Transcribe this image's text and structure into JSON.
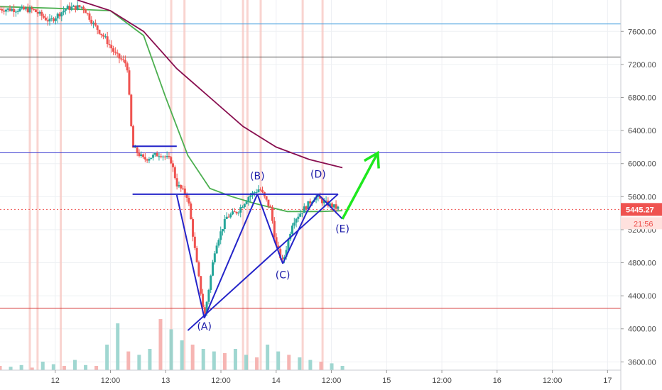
{
  "chart_data": {
    "type": "candlestick",
    "title": "",
    "y_axis": {
      "position": "right",
      "ticks": [
        "7600.00",
        "7200.00",
        "6800.00",
        "6400.00",
        "6000.00",
        "5600.00",
        "5200.00",
        "4800.00",
        "4400.00",
        "4000.00",
        "3600.00"
      ],
      "ylim": [
        3500,
        7980
      ]
    },
    "x_axis": {
      "ticks": [
        "12",
        "12:00",
        "13",
        "12:00",
        "14",
        "12:00",
        "15",
        "12:00",
        "16",
        "12:00",
        "17"
      ],
      "xlim": [
        0,
        5.62
      ]
    },
    "last_price": {
      "value": "5445.27",
      "countdown": "21:56",
      "color": "#ef5350"
    },
    "moving_averages": [
      {
        "color": "#4caf50",
        "points": [
          [
            0.0,
            7900
          ],
          [
            0.5,
            7880
          ],
          [
            1.0,
            7850
          ],
          [
            1.3,
            7550
          ],
          [
            1.5,
            6800
          ],
          [
            1.7,
            6100
          ],
          [
            1.9,
            5700
          ],
          [
            2.1,
            5600
          ],
          [
            2.3,
            5520
          ],
          [
            2.6,
            5420
          ],
          [
            2.9,
            5420
          ],
          [
            3.1,
            5430
          ]
        ]
      },
      {
        "color": "#880e4f",
        "points": [
          [
            0.7,
            7980
          ],
          [
            1.0,
            7850
          ],
          [
            1.3,
            7600
          ],
          [
            1.6,
            7150
          ],
          [
            1.9,
            6800
          ],
          [
            2.2,
            6450
          ],
          [
            2.5,
            6200
          ],
          [
            2.8,
            6050
          ],
          [
            3.1,
            5950
          ]
        ]
      }
    ],
    "price_path": [
      [
        0.0,
        7870
      ],
      [
        0.3,
        7860
      ],
      [
        0.45,
        7720
      ],
      [
        0.6,
        7880
      ],
      [
        0.75,
        7900
      ],
      [
        0.85,
        7680
      ],
      [
        0.95,
        7520
      ],
      [
        1.05,
        7310
      ],
      [
        1.15,
        7200
      ],
      [
        1.2,
        6200
      ],
      [
        1.3,
        6050
      ],
      [
        1.45,
        6120
      ],
      [
        1.55,
        6030
      ],
      [
        1.6,
        5750
      ],
      [
        1.7,
        5600
      ],
      [
        1.78,
        4800
      ],
      [
        1.85,
        4140
      ],
      [
        1.95,
        5000
      ],
      [
        2.05,
        5350
      ],
      [
        2.15,
        5420
      ],
      [
        2.25,
        5600
      ],
      [
        2.35,
        5700
      ],
      [
        2.45,
        5450
      ],
      [
        2.5,
        5000
      ],
      [
        2.56,
        4800
      ],
      [
        2.65,
        5300
      ],
      [
        2.75,
        5450
      ],
      [
        2.85,
        5600
      ],
      [
        2.95,
        5520
      ],
      [
        3.05,
        5460
      ]
    ],
    "volume": [
      0.05,
      0.04,
      0.06,
      0.03,
      0.1,
      0.07,
      0.05,
      0.12,
      0.06,
      0.05,
      0.3,
      0.55,
      0.22,
      0.18,
      0.25,
      0.6,
      0.48,
      0.35,
      0.3,
      0.25,
      0.22,
      0.2,
      0.25,
      0.18,
      0.15,
      0.3,
      0.22,
      0.18,
      0.15,
      0.12,
      0.1,
      0.08,
      0.05
    ],
    "horizontal_lines": [
      {
        "price": 7690,
        "color": "#4fa3e0"
      },
      {
        "price": 7290,
        "color": "#555555"
      },
      {
        "price": 6130,
        "color": "#3d3dd1"
      },
      {
        "price": 4250,
        "color": "#d32f2f"
      }
    ],
    "pattern_lines": [
      {
        "points": [
          [
            1.2,
            6210
          ],
          [
            1.6,
            6210
          ]
        ],
        "color": "#2424c9"
      },
      {
        "points": [
          [
            1.2,
            5630
          ],
          [
            3.06,
            5630
          ]
        ],
        "color": "#2424c9"
      },
      {
        "points": [
          [
            1.85,
            4130
          ],
          [
            1.6,
            5620
          ]
        ],
        "color": "#2424c9"
      },
      {
        "points": [
          [
            1.85,
            4130
          ],
          [
            2.33,
            5630
          ]
        ],
        "color": "#2424c9"
      },
      {
        "points": [
          [
            2.33,
            5630
          ],
          [
            2.56,
            4790
          ]
        ],
        "color": "#2424c9"
      },
      {
        "points": [
          [
            2.56,
            4790
          ],
          [
            2.78,
            5420
          ]
        ],
        "color": "#2424c9"
      },
      {
        "points": [
          [
            2.78,
            5420
          ],
          [
            2.88,
            5630
          ]
        ],
        "color": "#2424c9"
      },
      {
        "points": [
          [
            2.88,
            5630
          ],
          [
            3.1,
            5330
          ]
        ],
        "color": "#2424c9"
      },
      {
        "points": [
          [
            1.7,
            3980
          ],
          [
            3.06,
            5630
          ]
        ],
        "color": "#2424c9"
      }
    ],
    "pattern_labels": [
      {
        "text": "(A)",
        "x": 1.85,
        "y": 3990
      },
      {
        "text": "(B)",
        "x": 2.33,
        "y": 5810
      },
      {
        "text": "(C)",
        "x": 2.56,
        "y": 4610
      },
      {
        "text": "(D)",
        "x": 2.88,
        "y": 5830
      },
      {
        "text": "(E)",
        "x": 3.1,
        "y": 5170
      }
    ],
    "projection_arrow": {
      "color": "#1ee81e",
      "from": [
        3.1,
        5330
      ],
      "to": [
        3.42,
        6130
      ]
    }
  }
}
